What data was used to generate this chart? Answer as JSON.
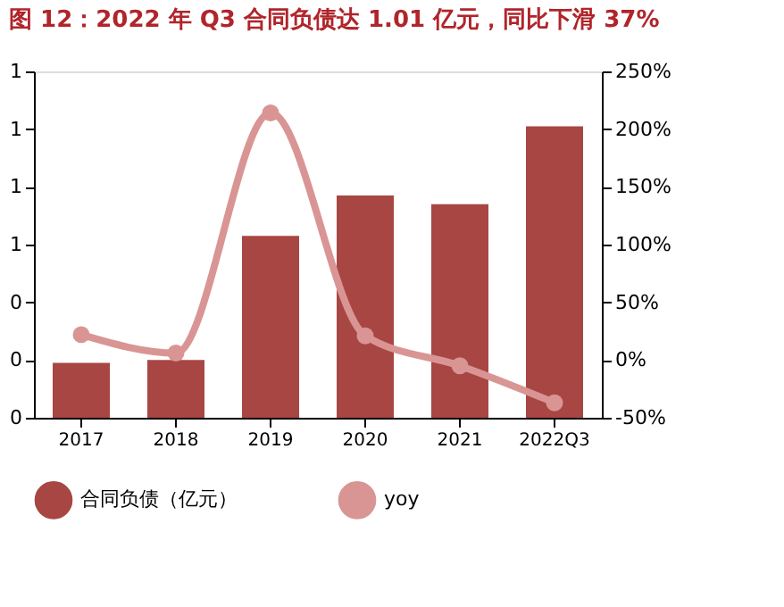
{
  "chart_data": {
    "type": "bar",
    "title": "图 12：2022 年 Q3 合同负债达 1.01 亿元，同比下滑 37%",
    "categories": [
      "2017",
      "2018",
      "2019",
      "2020",
      "2021",
      "2022Q3"
    ],
    "series": [
      {
        "name": "合同负债（亿元）",
        "color": "#a84644",
        "values": [
          0.19,
          0.2,
          0.63,
          0.77,
          0.74,
          1.01
        ]
      },
      {
        "name": "yoy",
        "type": "line",
        "axis": "y2",
        "color": "#d99594",
        "marker": "circle",
        "values": [
          22,
          6,
          214,
          21,
          -5,
          -37
        ]
      }
    ],
    "ylim": [
      0,
      1.2
    ],
    "yticks": [
      {
        "value": 0,
        "label": "0"
      },
      {
        "value": 0.2,
        "label": "0"
      },
      {
        "value": 0.4,
        "label": "0"
      },
      {
        "value": 0.6,
        "label": "1"
      },
      {
        "value": 0.8,
        "label": "1"
      },
      {
        "value": 1.0,
        "label": "1"
      },
      {
        "value": 1.2,
        "label": "1"
      }
    ],
    "y2lim": [
      -50,
      250
    ],
    "y2ticks": [
      {
        "value": -50,
        "label": "-50%"
      },
      {
        "value": 0,
        "label": "0%"
      },
      {
        "value": 50,
        "label": "50%"
      },
      {
        "value": 100,
        "label": "100%"
      },
      {
        "value": 150,
        "label": "150%"
      },
      {
        "value": 200,
        "label": "200%"
      },
      {
        "value": 250,
        "label": "250%"
      }
    ],
    "grid": false,
    "legend": "bottom"
  }
}
